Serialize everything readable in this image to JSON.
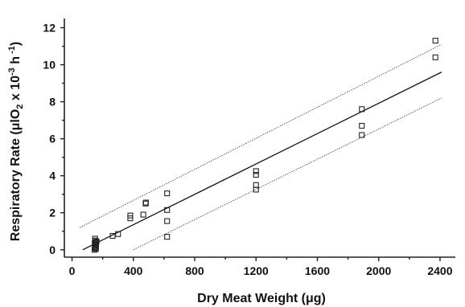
{
  "chart_data": {
    "type": "scatter",
    "title": "",
    "xlabel": "Dry Meat Weight (μg)",
    "ylabel": {
      "pre": "Respiratory Rate  (μlO",
      "sub": "2",
      "mid": " x 10",
      "sup": "-3",
      "mid2": " h",
      "sup2": " -1",
      "post": ")"
    },
    "xlim": [
      -50,
      2500
    ],
    "ylim": [
      -0.4,
      12.5
    ],
    "x_ticks": [
      0,
      400,
      800,
      1200,
      1600,
      2000,
      2400
    ],
    "y_ticks": [
      0,
      2,
      4,
      6,
      8,
      10,
      12
    ],
    "grid": false,
    "legend": "none",
    "points": [
      {
        "x": 150,
        "y": 0.6
      },
      {
        "x": 152,
        "y": 0.5
      },
      {
        "x": 155,
        "y": 0.4
      },
      {
        "x": 148,
        "y": 0.35
      },
      {
        "x": 153,
        "y": 0.3
      },
      {
        "x": 157,
        "y": 0.25
      },
      {
        "x": 150,
        "y": 0.2
      },
      {
        "x": 154,
        "y": 0.15
      },
      {
        "x": 149,
        "y": 0.1
      },
      {
        "x": 156,
        "y": 0.05
      },
      {
        "x": 160,
        "y": 0.45
      },
      {
        "x": 147,
        "y": 0.0
      },
      {
        "x": 265,
        "y": 0.75
      },
      {
        "x": 300,
        "y": 0.85
      },
      {
        "x": 380,
        "y": 1.7
      },
      {
        "x": 380,
        "y": 1.85
      },
      {
        "x": 465,
        "y": 1.9
      },
      {
        "x": 480,
        "y": 2.5
      },
      {
        "x": 482,
        "y": 2.55
      },
      {
        "x": 620,
        "y": 3.05
      },
      {
        "x": 620,
        "y": 2.15
      },
      {
        "x": 620,
        "y": 1.55
      },
      {
        "x": 620,
        "y": 0.7
      },
      {
        "x": 1200,
        "y": 4.25
      },
      {
        "x": 1200,
        "y": 4.05
      },
      {
        "x": 1200,
        "y": 3.5
      },
      {
        "x": 1200,
        "y": 3.25
      },
      {
        "x": 1890,
        "y": 7.6
      },
      {
        "x": 1890,
        "y": 6.7
      },
      {
        "x": 1890,
        "y": 6.2
      },
      {
        "x": 2370,
        "y": 11.3
      },
      {
        "x": 2370,
        "y": 10.4
      }
    ],
    "fit_line": {
      "x": [
        70,
        2410
      ],
      "y": [
        0.0,
        9.6
      ]
    },
    "upper_bound": {
      "x": [
        50,
        2410
      ],
      "y": [
        1.2,
        11.1
      ]
    },
    "lower_bound": {
      "x": [
        400,
        2410
      ],
      "y": [
        0.0,
        8.2
      ]
    }
  }
}
